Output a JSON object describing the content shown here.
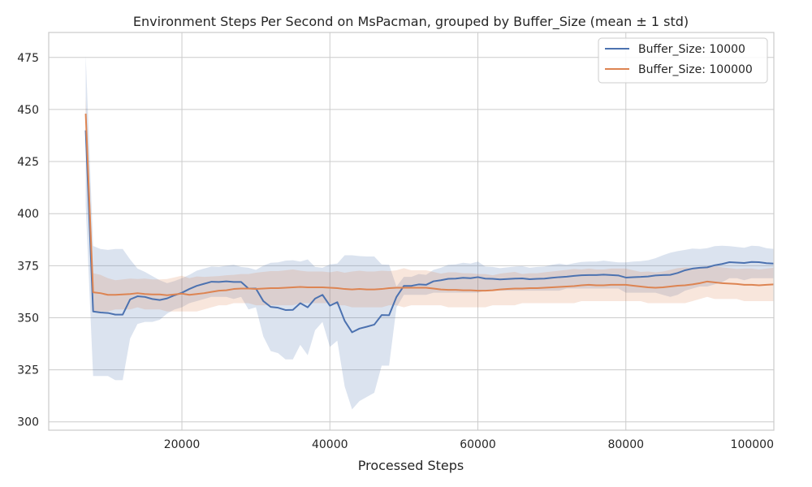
{
  "chart_data": {
    "type": "line",
    "title": "Environment Steps Per Second on MsPacman, grouped by Buffer_Size (mean ± 1 std)",
    "xlabel": "Processed Steps",
    "ylabel": "",
    "xlim": [
      2000,
      100000
    ],
    "ylim": [
      296,
      487
    ],
    "xticks": [
      20000,
      40000,
      60000,
      80000,
      100000
    ],
    "xtick_labels": [
      "20000",
      "40000",
      "60000",
      "80000",
      "100000"
    ],
    "yticks": [
      300,
      325,
      350,
      375,
      400,
      425,
      450,
      475
    ],
    "ytick_labels": [
      "300",
      "325",
      "350",
      "375",
      "400",
      "425",
      "450",
      "475"
    ],
    "grid": true,
    "legend_position": "top-right",
    "series": [
      {
        "name": "Buffer_Size: 10000",
        "color": "#4c72b0",
        "x": [
          7000,
          8000,
          9000,
          10000,
          11000,
          12000,
          13000,
          14000,
          15000,
          16000,
          17000,
          18000,
          19000,
          20000,
          21000,
          22000,
          23000,
          24000,
          25000,
          26000,
          27000,
          28000,
          29000,
          30000,
          31000,
          32000,
          33000,
          34000,
          35000,
          36000,
          37000,
          38000,
          39000,
          40000,
          41000,
          42000,
          43000,
          44000,
          45000,
          46000,
          47000,
          48000,
          49000,
          50000,
          51000,
          52000,
          53000,
          54000,
          55000,
          56000,
          57000,
          58000,
          59000,
          60000,
          61000,
          62000,
          63000,
          64000,
          65000,
          66000,
          67000,
          68000,
          69000,
          70000,
          71000,
          72000,
          73000,
          74000,
          75000,
          76000,
          77000,
          78000,
          79000,
          80000,
          81000,
          82000,
          83000,
          84000,
          85000,
          86000,
          87000,
          88000,
          89000,
          90000,
          91000,
          92000,
          93000,
          94000,
          95000,
          96000,
          97000,
          98000,
          99000,
          100000
        ],
        "y": [
          440,
          353,
          352.5,
          352.3,
          351.5,
          351.5,
          358.8,
          360.3,
          360,
          359,
          358.5,
          359.3,
          360.8,
          362,
          363.8,
          365.3,
          366.3,
          367.3,
          367.2,
          367.5,
          367.2,
          367.2,
          364,
          364,
          358,
          355.2,
          354.8,
          353.7,
          353.8,
          357,
          355,
          359.2,
          361,
          355.8,
          357.5,
          348.5,
          343,
          344.8,
          345.7,
          346.7,
          351.3,
          351.2,
          360,
          365.3,
          365.3,
          366,
          365.8,
          367.5,
          368,
          368.7,
          368.8,
          369.2,
          369,
          369.5,
          368.8,
          368.7,
          368.4,
          368.6,
          368.8,
          368.9,
          368.5,
          368.7,
          368.8,
          369.2,
          369.5,
          369.7,
          370.1,
          370.4,
          370.5,
          370.5,
          370.7,
          370.5,
          370.3,
          369.3,
          369.5,
          369.6,
          369.8,
          370.3,
          370.5,
          370.6,
          371.5,
          372.8,
          373.6,
          374,
          374.2,
          375.2,
          375.8,
          376.7,
          376.5,
          376.3,
          376.8,
          376.7,
          376.2,
          376
        ],
        "lower": [
          404,
          322,
          322,
          322,
          320,
          320,
          340,
          347,
          348,
          348,
          349,
          352,
          354,
          355,
          357,
          358,
          359,
          360,
          360,
          360,
          359,
          360,
          354,
          355,
          341,
          334,
          333,
          330,
          330,
          337,
          332,
          344,
          348,
          336,
          339,
          317,
          306,
          310,
          312,
          314,
          327,
          327,
          355,
          361,
          361,
          361,
          361,
          362,
          362,
          362,
          362,
          362,
          362,
          362,
          363,
          363,
          363,
          363,
          363,
          363,
          363,
          363,
          363,
          363,
          363,
          364,
          364,
          364,
          364,
          364,
          364,
          364,
          364,
          362,
          362,
          362,
          362,
          362,
          361,
          360,
          361,
          363,
          364,
          365,
          365,
          366,
          367,
          369,
          369,
          368,
          369,
          369,
          369,
          369
        ],
        "upper": [
          476,
          384.5,
          383,
          382.6,
          383,
          383,
          378,
          373.6,
          372,
          370,
          368,
          366.6,
          367.6,
          369,
          370.6,
          372.6,
          373.6,
          374.6,
          374.4,
          375,
          375.4,
          374.4,
          374,
          373,
          375,
          376.4,
          376.6,
          377.4,
          377.6,
          377,
          378,
          374.4,
          374,
          375.6,
          376,
          380,
          380,
          379.6,
          379.4,
          379.4,
          375.6,
          375.4,
          365,
          369.6,
          369.6,
          371,
          370.6,
          373,
          374,
          375.4,
          375.6,
          376.4,
          376,
          377,
          374.6,
          374.4,
          373.8,
          374.2,
          374.6,
          374.8,
          374,
          374.4,
          374.6,
          375.4,
          376,
          375.4,
          376.2,
          376.8,
          377,
          377,
          377.4,
          377,
          376.6,
          376.6,
          377,
          377.2,
          377.6,
          378.6,
          380,
          381.2,
          382,
          382.6,
          383.2,
          383,
          383.4,
          384.4,
          384.6,
          384.4,
          384,
          383.6,
          384.6,
          384.4,
          383.4,
          383
        ]
      },
      {
        "name": "Buffer_Size: 100000",
        "color": "#dd8452",
        "x": [
          7000,
          8000,
          9000,
          10000,
          11000,
          12000,
          13000,
          14000,
          15000,
          16000,
          17000,
          18000,
          19000,
          20000,
          21000,
          22000,
          23000,
          24000,
          25000,
          26000,
          27000,
          28000,
          29000,
          30000,
          31000,
          32000,
          33000,
          34000,
          35000,
          36000,
          37000,
          38000,
          39000,
          40000,
          41000,
          42000,
          43000,
          44000,
          45000,
          46000,
          47000,
          48000,
          49000,
          50000,
          51000,
          52000,
          53000,
          54000,
          55000,
          56000,
          57000,
          58000,
          59000,
          60000,
          61000,
          62000,
          63000,
          64000,
          65000,
          66000,
          67000,
          68000,
          69000,
          70000,
          71000,
          72000,
          73000,
          74000,
          75000,
          76000,
          77000,
          78000,
          79000,
          80000,
          81000,
          82000,
          83000,
          84000,
          85000,
          86000,
          87000,
          88000,
          89000,
          90000,
          91000,
          92000,
          93000,
          94000,
          95000,
          96000,
          97000,
          98000,
          99000,
          100000
        ],
        "y": [
          448,
          362.2,
          361.8,
          361,
          361,
          361.2,
          361.4,
          361.8,
          361.4,
          361.2,
          361.2,
          360.8,
          361.2,
          361.6,
          361,
          361.4,
          361.8,
          362.4,
          363,
          363.2,
          363.8,
          364,
          364,
          363.8,
          364,
          364.2,
          364.2,
          364.4,
          364.6,
          364.8,
          364.6,
          364.6,
          364.6,
          364.4,
          364.2,
          363.8,
          363.6,
          363.8,
          363.6,
          363.6,
          363.8,
          364.2,
          364.4,
          364.4,
          364.4,
          364.4,
          364.4,
          364,
          363.6,
          363.4,
          363.4,
          363.2,
          363.2,
          363,
          363,
          363.2,
          363.6,
          363.8,
          364,
          364,
          364.2,
          364.2,
          364.4,
          364.6,
          364.8,
          365,
          365.2,
          365.6,
          365.8,
          365.6,
          365.6,
          365.8,
          365.8,
          365.8,
          365.4,
          365,
          364.6,
          364.4,
          364.6,
          365,
          365.4,
          365.6,
          366,
          366.6,
          367.4,
          367,
          366.6,
          366.4,
          366.2,
          365.8,
          365.8,
          365.6,
          365.8,
          366
        ],
        "lower": [
          440,
          353,
          353,
          353,
          354,
          354,
          354,
          355,
          354,
          354,
          354,
          353,
          353,
          353,
          353,
          353,
          354,
          355,
          356,
          356,
          357,
          357,
          357,
          356,
          356,
          356,
          356,
          356,
          356,
          357,
          357,
          357,
          357,
          357,
          356,
          356,
          355,
          355,
          355,
          355,
          355,
          356,
          356,
          355,
          356,
          356,
          356,
          356,
          356,
          355,
          355,
          355,
          355,
          355,
          355,
          356,
          356,
          356,
          356,
          357,
          357,
          357,
          357,
          357,
          357,
          357,
          357,
          358,
          358,
          358,
          358,
          358,
          358,
          358,
          358,
          358,
          357,
          357,
          357,
          357,
          357,
          357,
          358,
          359,
          360,
          359,
          359,
          359,
          359,
          358,
          358,
          358,
          358,
          358
        ],
        "upper": [
          456,
          371.4,
          370.6,
          369,
          368,
          368.4,
          368.8,
          368.6,
          368.8,
          368.4,
          368.4,
          368.6,
          369.4,
          370.2,
          369,
          369.8,
          369.6,
          369.8,
          370,
          370.4,
          370.6,
          371,
          371,
          371.6,
          372,
          372.4,
          372.4,
          372.8,
          373.2,
          372.6,
          372.2,
          372.2,
          372.2,
          371.8,
          372.4,
          371.6,
          372.2,
          372.6,
          372.2,
          372.2,
          372.6,
          372.4,
          372.8,
          373.8,
          372.8,
          372.8,
          372.8,
          372,
          371.2,
          371.8,
          371.8,
          371.4,
          371.4,
          371,
          371,
          370.4,
          371.2,
          371.6,
          372,
          371,
          371.4,
          371.4,
          371.8,
          372.2,
          372.6,
          373,
          373.4,
          373.2,
          373.6,
          373.2,
          373.2,
          373.6,
          373.6,
          373.6,
          372.8,
          372,
          372.2,
          371.8,
          372.2,
          373,
          373.8,
          374.2,
          374,
          374.2,
          374.8,
          375,
          374.2,
          373.8,
          373.4,
          373.6,
          373.6,
          373.2,
          373.6,
          374
        ]
      }
    ]
  }
}
